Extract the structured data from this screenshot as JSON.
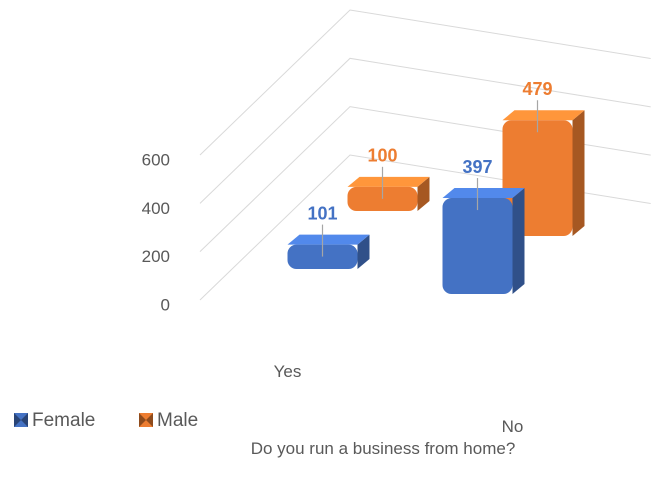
{
  "chart_data": {
    "type": "bar3d",
    "x_label": "Do you run a business from home?",
    "categories": [
      "Yes",
      "No"
    ],
    "series": [
      {
        "name": "Female",
        "color": "#4472c4",
        "values": [
          101,
          397
        ]
      },
      {
        "name": "Male",
        "color": "#ed7d31",
        "values": [
          100,
          479
        ]
      }
    ],
    "ylim": [
      0,
      600
    ],
    "yticks": [
      0,
      200,
      400,
      600
    ],
    "grid": true,
    "legend": "bottom-left"
  }
}
